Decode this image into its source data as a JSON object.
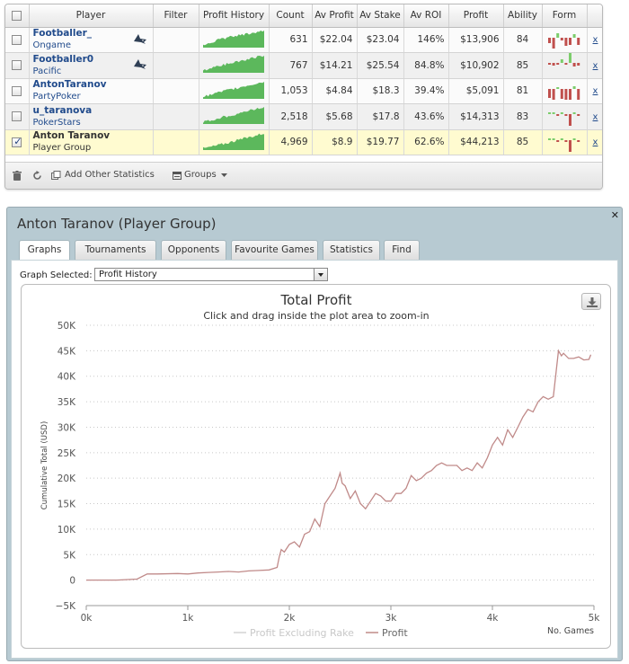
{
  "table": {
    "columns": [
      "Player",
      "Filter",
      "Profit History",
      "Count",
      "Av Profit",
      "Av Stake",
      "Av ROI",
      "Profit",
      "Ability",
      "Form"
    ],
    "rows": [
      {
        "name": "Footballer_",
        "site": "Ongame",
        "count": "631",
        "av_profit": "$22.04",
        "av_stake": "$23.04",
        "av_roi": "146%",
        "profit": "$13,906",
        "ability": "84",
        "checked": false,
        "shark": true,
        "form": [
          {
            "h": 6,
            "c": "#c0504d",
            "up": false
          },
          {
            "h": 12,
            "c": "#c0504d",
            "up": false
          },
          {
            "h": 5,
            "c": "#7ccd6b",
            "up": true
          },
          {
            "h": 3,
            "c": "#c0504d",
            "up": false
          },
          {
            "h": 9,
            "c": "#c0504d",
            "up": false
          },
          {
            "h": 8,
            "c": "#c0504d",
            "up": false
          },
          {
            "h": 4,
            "c": "#7ccd6b",
            "up": true
          },
          {
            "h": 8,
            "c": "#c0504d",
            "up": false
          }
        ]
      },
      {
        "name": "Footballer0",
        "site": "Pacific",
        "count": "767",
        "av_profit": "$14.21",
        "av_stake": "$25.54",
        "av_roi": "84.8%",
        "profit": "$10,902",
        "ability": "85",
        "checked": false,
        "shark": true,
        "form": [
          {
            "h": 2,
            "c": "#c0504d",
            "up": false
          },
          {
            "h": 3,
            "c": "#c0504d",
            "up": false
          },
          {
            "h": 2,
            "c": "#c0504d",
            "up": false
          },
          {
            "h": 4,
            "c": "#7ccd6b",
            "up": true
          },
          {
            "h": 2,
            "c": "#c0504d",
            "up": false
          },
          {
            "h": 12,
            "c": "#7ccd6b",
            "up": true
          },
          {
            "h": 4,
            "c": "#c0504d",
            "up": false
          },
          {
            "h": 3,
            "c": "#c0504d",
            "up": false
          }
        ]
      },
      {
        "name": "AntonTaranov",
        "site": "PartyPoker",
        "count": "1,053",
        "av_profit": "$4.84",
        "av_stake": "$18.3",
        "av_roi": "39.4%",
        "profit": "$5,091",
        "ability": "81",
        "checked": false,
        "shark": false,
        "form": [
          {
            "h": 10,
            "c": "#c0504d",
            "up": false
          },
          {
            "h": 12,
            "c": "#c0504d",
            "up": false
          },
          {
            "h": 2,
            "c": "#7ccd6b",
            "up": true
          },
          {
            "h": 11,
            "c": "#c0504d",
            "up": false
          },
          {
            "h": 12,
            "c": "#c0504d",
            "up": false
          },
          {
            "h": 12,
            "c": "#c0504d",
            "up": false
          },
          {
            "h": 3,
            "c": "#7ccd6b",
            "up": true
          },
          {
            "h": 12,
            "c": "#c0504d",
            "up": false
          }
        ]
      },
      {
        "name": "u_taranova",
        "site": "PokerStars",
        "count": "2,518",
        "av_profit": "$5.68",
        "av_stake": "$17.8",
        "av_roi": "43.6%",
        "profit": "$14,313",
        "ability": "83",
        "checked": false,
        "shark": false,
        "form": [
          {
            "h": 2,
            "c": "#7ccd6b",
            "up": true
          },
          {
            "h": 2,
            "c": "#7ccd6b",
            "up": true
          },
          {
            "h": 2,
            "c": "#c0504d",
            "up": false
          },
          {
            "h": 2,
            "c": "#7ccd6b",
            "up": true
          },
          {
            "h": 2,
            "c": "#c0504d",
            "up": false
          },
          {
            "h": 13,
            "c": "#c0504d",
            "up": false
          },
          {
            "h": 2,
            "c": "#7ccd6b",
            "up": true
          },
          {
            "h": 2,
            "c": "#c0504d",
            "up": false
          }
        ]
      },
      {
        "name": "Anton Taranov",
        "site": "Player Group",
        "count": "4,969",
        "av_profit": "$8.9",
        "av_stake": "$19.77",
        "av_roi": "62.6%",
        "profit": "$44,213",
        "ability": "85",
        "checked": true,
        "shark": false,
        "form": [
          {
            "h": 2,
            "c": "#7ccd6b",
            "up": true
          },
          {
            "h": 2,
            "c": "#7ccd6b",
            "up": true
          },
          {
            "h": 2,
            "c": "#c0504d",
            "up": false
          },
          {
            "h": 2,
            "c": "#7ccd6b",
            "up": true
          },
          {
            "h": 2,
            "c": "#c0504d",
            "up": false
          },
          {
            "h": 15,
            "c": "#c0504d",
            "up": false
          },
          {
            "h": 2,
            "c": "#7ccd6b",
            "up": true
          },
          {
            "h": 2,
            "c": "#c0504d",
            "up": false
          }
        ]
      }
    ],
    "remove_label": "x",
    "footer": {
      "add_stats_label": "Add Other Statistics",
      "groups_label": "Groups"
    }
  },
  "panel": {
    "title": "Anton Taranov (Player Group)",
    "tabs": [
      "Graphs",
      "Tournaments",
      "Opponents",
      "Favourite Games",
      "Statistics",
      "Find"
    ],
    "active_tab": 0,
    "graph_select_label": "Graph Selected:",
    "graph_select_value": "Profit History"
  },
  "chart_data": {
    "type": "line",
    "title": "Total Profit",
    "subtitle": "Click and drag inside the plot area to zoom-in",
    "ylabel": "Cumulative Total (USD)",
    "xlabel": "No. Games",
    "ylim": [
      -5000,
      50000
    ],
    "xlim": [
      0,
      5000
    ],
    "yticks": [
      -5000,
      0,
      5000,
      10000,
      15000,
      20000,
      25000,
      30000,
      35000,
      40000,
      45000,
      50000
    ],
    "ytick_labels": [
      "−5K",
      "0",
      "5K",
      "10K",
      "15K",
      "20K",
      "25K",
      "30K",
      "35K",
      "40K",
      "45K",
      "50K"
    ],
    "xticks": [
      0,
      1000,
      2000,
      3000,
      4000,
      5000
    ],
    "xtick_labels": [
      "0k",
      "1k",
      "2k",
      "3k",
      "4k",
      "5k"
    ],
    "grid": true,
    "legend": {
      "placement": "bottom-center",
      "entries": [
        {
          "name": "Profit Excluding Rake",
          "color": "#d3d3d3"
        },
        {
          "name": "Profit",
          "color": "#c08a89"
        }
      ]
    },
    "series": [
      {
        "name": "Profit",
        "color": "#c08a89",
        "x": [
          0,
          300,
          500,
          600,
          700,
          900,
          1000,
          1100,
          1200,
          1300,
          1400,
          1500,
          1600,
          1700,
          1800,
          1880,
          1900,
          1920,
          1950,
          2000,
          2050,
          2100,
          2150,
          2200,
          2250,
          2300,
          2350,
          2400,
          2450,
          2500,
          2520,
          2550,
          2600,
          2650,
          2700,
          2750,
          2800,
          2850,
          2900,
          2950,
          3000,
          3050,
          3100,
          3150,
          3200,
          3250,
          3300,
          3350,
          3400,
          3450,
          3500,
          3550,
          3600,
          3650,
          3700,
          3750,
          3800,
          3850,
          3900,
          3950,
          4000,
          4050,
          4100,
          4150,
          4200,
          4250,
          4300,
          4350,
          4400,
          4450,
          4500,
          4550,
          4600,
          4650,
          4680,
          4700,
          4750,
          4800,
          4850,
          4900,
          4950,
          4969
        ],
        "values": [
          0,
          0,
          200,
          1200,
          1200,
          1300,
          1200,
          1400,
          1500,
          1600,
          1700,
          1600,
          1800,
          1900,
          2000,
          2500,
          4500,
          6000,
          5500,
          7000,
          7500,
          6500,
          9000,
          9500,
          12000,
          10500,
          15000,
          16500,
          18000,
          21000,
          19000,
          18500,
          16000,
          17500,
          15000,
          14000,
          15500,
          17000,
          16500,
          15500,
          15500,
          17000,
          17000,
          18000,
          20500,
          19500,
          20000,
          21000,
          21500,
          22500,
          23000,
          22500,
          22500,
          22500,
          21500,
          22000,
          21500,
          23000,
          22000,
          24000,
          26500,
          28000,
          26500,
          29500,
          28000,
          30000,
          32000,
          33500,
          33000,
          35000,
          36000,
          35500,
          36000,
          45000,
          44000,
          44500,
          43500,
          43500,
          43800,
          43200,
          43300,
          44213
        ]
      }
    ]
  }
}
